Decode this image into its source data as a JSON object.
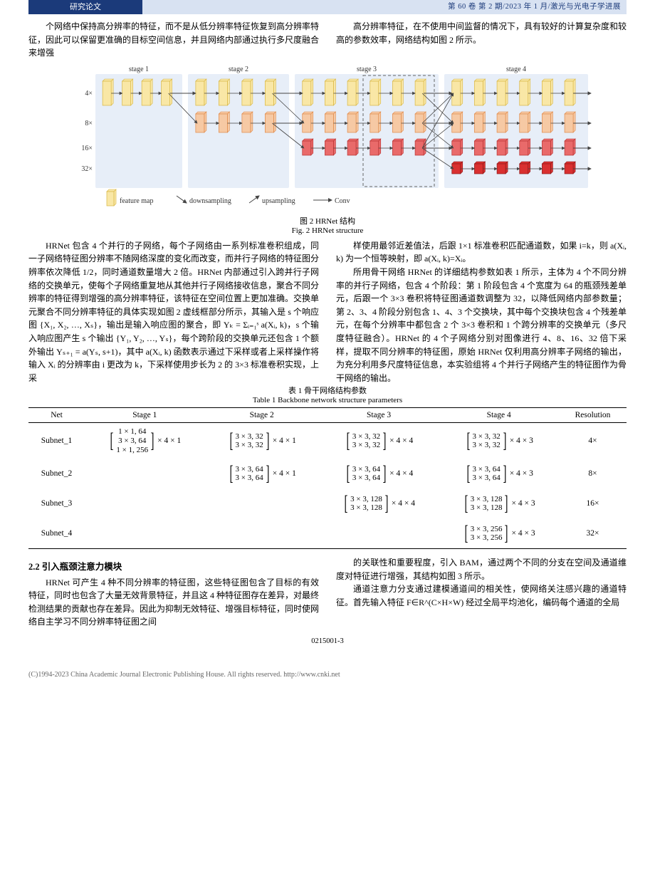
{
  "header": {
    "left": "研究论文",
    "right": "第 60 卷 第 2 期/2023 年 1 月/激光与光电子学进展"
  },
  "intro": {
    "p1a": "个网络中保持高分辨率的特征，而不是从低分辨率特征恢复到高分辨率特征，因此可以保留更准确的目标空间信息，并且网络内部通过执行多尺度融合来增强",
    "p1b": "高分辨率特征，在不使用中间监督的情况下，具有较好的计算复杂度和较高的参数效率，网络结构如图 2 所示。"
  },
  "fig2": {
    "stage_labels": [
      "stage 1",
      "stage 2",
      "stage 3",
      "stage 4"
    ],
    "scales": [
      "4×",
      "8×",
      "16×",
      "32×"
    ],
    "legend": {
      "fm": "feature map",
      "down": "downsampling",
      "up": "upsampling",
      "conv": "Conv"
    },
    "colors": {
      "panel_bg": "#e7eef8",
      "row1_fill": "#f9e7a6",
      "row1_stroke": "#d8b642",
      "row2_fill": "#f6c9a4",
      "row2_stroke": "#e08a49",
      "row3_fill": "#e96a6a",
      "row3_stroke": "#b93232",
      "row4_fill": "#d93030",
      "row4_stroke": "#8f1717",
      "arrow": "#444"
    },
    "caption_cn": "图 2  HRNet 结构",
    "caption_en": "Fig. 2  HRNet structure"
  },
  "body": {
    "left1": "HRNet 包含 4 个并行的子网络，每个子网络由一系列标准卷积组成，同一子网络特征图分辨率不随网络深度的变化而改变，而并行子网络的特征图分辨率依次降低 1/2，同时通道数量增大 2 倍。HRNet 内部通过引入跨并行子网络的交换单元，使每个子网络重复地从其他并行子网络接收信息，聚合不同分辨率的特征得到增强的高分辨率特征，该特征在空间位置上更加准确。交换单元聚合不同分辨率特征的具体实现如图 2 虚线框部分所示，其输入是 s 个响应图 {X₁, X₂, …, Xₛ}，输出是输入响应图的聚合，即 Yₖ = Σᵢ₌₁ˢ a(Xᵢ, k)，s 个输入响应图产生 s 个输出 {Y₁, Y₂, …, Yₛ}，每个跨阶段的交换单元还包含 1 个额外输出 Yₛ₊₁ = a(Yₛ, s+1)，其中 a(Xᵢ, k) 函数表示通过下采样或者上采样操作将输入 Xᵢ 的分辨率由 i 更改为 k，下采样使用步长为 2 的 3×3 标准卷积实现，上采",
    "right1a": "样使用最邻近差值法，后跟 1×1 标准卷积匹配通道数，如果 i=k，则 a(Xᵢ, k) 为一个恒等映射，即 a(Xᵢ, k)=Xᵢ。",
    "right1b": "所用骨干网络 HRNet 的详细结构参数如表 1 所示，主体为 4 个不同分辨率的并行子网络，包含 4 个阶段：第 1 阶段包含 4 个宽度为 64 的瓶颈残差单元，后跟一个 3×3 卷积将特征图通道数调整为 32，以降低网络内部参数量；第 2、3、4 阶段分别包含 1、4、3 个交换块，其中每个交换块包含 4 个残差单元，在每个分辨率中都包含 2 个 3×3 卷积和 1 个跨分辨率的交换单元（多尺度特征融合）。HRNet 的 4 个子网络分别对图像进行 4、8、16、32 倍下采样，提取不同分辨率的特征图，原始 HRNet 仅利用高分辨率子网络的输出，为充分利用多尺度特征信息，本实验组将 4 个并行子网络产生的特征图作为骨干网络的输出。"
  },
  "table1": {
    "caption_cn": "表 1  骨干网络结构参数",
    "caption_en": "Table 1  Backbone network structure parameters",
    "headers": [
      "Net",
      "Stage 1",
      "Stage 2",
      "Stage 3",
      "Stage 4",
      "Resolution"
    ],
    "rows": [
      {
        "net": "Subnet_1",
        "s1": {
          "lines": [
            "1 × 1, 64",
            "3 × 3, 64",
            "1 × 1, 256"
          ],
          "suffix": "× 4 × 1"
        },
        "s2": {
          "lines": [
            "3 × 3, 32",
            "3 × 3, 32"
          ],
          "suffix": "× 4 × 1"
        },
        "s3": {
          "lines": [
            "3 × 3, 32",
            "3 × 3, 32"
          ],
          "suffix": "× 4 × 4"
        },
        "s4": {
          "lines": [
            "3 × 3, 32",
            "3 × 3, 32"
          ],
          "suffix": "× 4 × 3"
        },
        "res": "4×"
      },
      {
        "net": "Subnet_2",
        "s1": null,
        "s2": {
          "lines": [
            "3 × 3, 64",
            "3 × 3, 64"
          ],
          "suffix": "× 4 × 1"
        },
        "s3": {
          "lines": [
            "3 × 3, 64",
            "3 × 3, 64"
          ],
          "suffix": "× 4 × 4"
        },
        "s4": {
          "lines": [
            "3 × 3, 64",
            "3 × 3, 64"
          ],
          "suffix": "× 4 × 3"
        },
        "res": "8×"
      },
      {
        "net": "Subnet_3",
        "s1": null,
        "s2": null,
        "s3": {
          "lines": [
            "3 × 3, 128",
            "3 × 3, 128"
          ],
          "suffix": "× 4 × 4"
        },
        "s4": {
          "lines": [
            "3 × 3, 128",
            "3 × 3, 128"
          ],
          "suffix": "× 4 × 3"
        },
        "res": "16×"
      },
      {
        "net": "Subnet_4",
        "s1": null,
        "s2": null,
        "s3": null,
        "s4": {
          "lines": [
            "3 × 3, 256",
            "3 × 3, 256"
          ],
          "suffix": "× 4 × 3"
        },
        "res": "32×"
      }
    ]
  },
  "sec22": {
    "title": "2.2  引入瓶颈注意力模块",
    "p1": "HRNet 可产生 4 种不同分辨率的特征图，这些特征图包含了目标的有效特征，同时也包含了大量无效背景特征，并且这 4 种特征图存在差异，对最终检测结果的贡献也存在差异。因此为抑制无效特征、增强目标特征，同时使网络自主学习不同分辨率特征图之间",
    "p2a": "的关联性和重要程度，引入 BAM，通过两个不同的分支在空间及通道维度对特征进行增强，其结构如图 3 所示。",
    "p2b": "通道注意力分支通过建模通道间的相关性，使网络关注感兴趣的通道特征。首先输入特征 F∈R^(C×H×W) 经过全局平均池化，编码每个通道的全局"
  },
  "pageno": "0215001-3",
  "footer": "(C)1994-2023 China Academic Journal Electronic Publishing House. All rights reserved.    http://www.cnki.net"
}
